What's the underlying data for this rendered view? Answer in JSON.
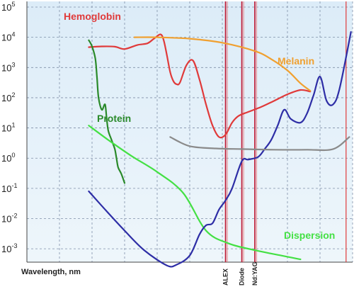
{
  "chart_data": {
    "type": "line",
    "title": "",
    "xlabel": "Wavelength, nm",
    "ylabel": "",
    "y_scale": "log",
    "ylim": [
      0.0006,
      100000
    ],
    "xlim": [
      0,
      100
    ],
    "grid": true,
    "y_ticks": [
      {
        "base": "10",
        "exp": "5",
        "value": 100000
      },
      {
        "base": "10",
        "exp": "4",
        "value": 10000
      },
      {
        "base": "10",
        "exp": "3",
        "value": 1000
      },
      {
        "base": "10",
        "exp": "2",
        "value": 100
      },
      {
        "base": "10",
        "exp": "1",
        "value": 10
      },
      {
        "base": "10",
        "exp": "0",
        "value": 1
      },
      {
        "base": "10",
        "exp": "-1",
        "value": 0.1
      },
      {
        "base": "10",
        "exp": "-2",
        "value": 0.01
      },
      {
        "base": "10",
        "exp": "-3",
        "value": 0.001
      }
    ],
    "series": [
      {
        "name": "Hemoglobin",
        "color": "#e03a3a",
        "label_color": "#e03a3a",
        "x": [
          19,
          23,
          27,
          30,
          34,
          37,
          39,
          41,
          42,
          43,
          44,
          45,
          46,
          47,
          49,
          51,
          53,
          55,
          57,
          59,
          61,
          63,
          65,
          68,
          72,
          76,
          80,
          84,
          87
        ],
        "y": [
          4700,
          5000,
          4900,
          4100,
          5600,
          6300,
          9000,
          12500,
          8000,
          2500,
          700,
          350,
          280,
          320,
          1200,
          1700,
          400,
          60,
          12,
          5,
          6,
          15,
          25,
          34,
          50,
          80,
          130,
          180,
          160
        ]
      },
      {
        "name": "Melanin",
        "color": "#f0a030",
        "label_color": "#f0a030",
        "x": [
          33,
          40,
          50,
          60,
          70,
          75,
          80,
          84,
          87
        ],
        "y": [
          10000,
          10000,
          9000,
          6600,
          3500,
          1900,
          800,
          300,
          170
        ]
      },
      {
        "name": "Protein",
        "color": "#2a8a2a",
        "label_color": "#2a8a2a",
        "x": [
          19,
          20,
          21,
          21.5,
          22,
          23,
          24,
          24.5,
          25,
          26,
          27,
          27.5,
          28,
          29,
          30
        ],
        "y": [
          8000,
          5000,
          2000,
          500,
          100,
          40,
          60,
          20,
          8,
          4,
          2,
          1,
          0.5,
          0.3,
          0.15
        ]
      },
      {
        "name": "Dispersion",
        "color": "#44e044",
        "label_color": "#44e044",
        "x": [
          19,
          25,
          32,
          40,
          48,
          55,
          62,
          70,
          78,
          84
        ],
        "y": [
          12,
          4,
          1.2,
          0.35,
          0.07,
          0.004,
          0.0015,
          0.0009,
          0.0006,
          0.00045
        ]
      },
      {
        "name": "",
        "color": "#2e2ea6",
        "label_color": "",
        "x": [
          19,
          24,
          30,
          36,
          43,
          46,
          50,
          53,
          55,
          57,
          59,
          61,
          63,
          66,
          68,
          71,
          73,
          75,
          77,
          79,
          81,
          84,
          86,
          88,
          90,
          92,
          94,
          96,
          99.5
        ],
        "y": [
          0.08,
          0.02,
          0.004,
          0.0009,
          0.00028,
          0.0003,
          0.0006,
          0.003,
          0.006,
          0.007,
          0.02,
          0.04,
          0.1,
          0.8,
          0.9,
          1.1,
          2,
          4,
          12,
          40,
          20,
          15,
          30,
          120,
          500,
          80,
          60,
          200,
          15000
        ]
      },
      {
        "name": "",
        "color": "#8a8a8a",
        "label_color": "",
        "x": [
          44,
          50,
          58,
          66,
          76,
          86,
          94,
          99
        ],
        "y": [
          5,
          2.5,
          2.1,
          2,
          1.9,
          1.9,
          2,
          5
        ]
      }
    ],
    "lasers": [
      {
        "label": "ALEX",
        "x": 61,
        "color": "#c0203a"
      },
      {
        "label": "Diode",
        "x": 66,
        "color": "#c0203a"
      },
      {
        "label": "Nd:YAG",
        "x": 70,
        "color": "#c0203a"
      }
    ],
    "extra_vline": {
      "x": 98,
      "color": "#e03a3a"
    },
    "label_positions_hint": "labels placed near their curves"
  },
  "labels": {
    "xlabel": "Wavelength, nm"
  }
}
